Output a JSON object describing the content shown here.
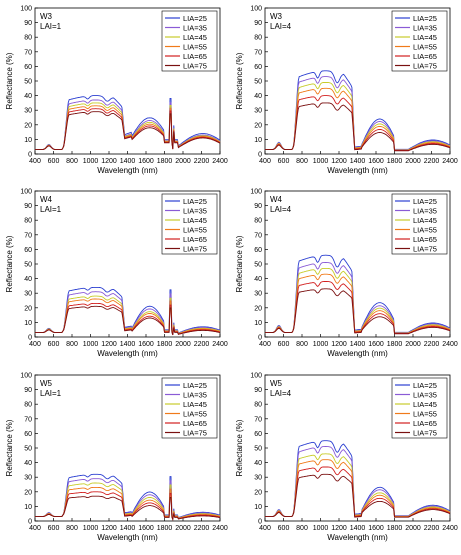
{
  "legend_labels": [
    "LIA=25",
    "LIA=35",
    "LIA=45",
    "LIA=55",
    "LIA=65",
    "LIA=75"
  ],
  "series_colors": [
    "#2b3fd1",
    "#8a5bd6",
    "#c8cc2a",
    "#f07a1a",
    "#d21f1f",
    "#7a1010"
  ],
  "chart_data": [
    {
      "type": "line",
      "title_lines": [
        "W3",
        "LAI=1"
      ],
      "xlabel": "Wavelength (nm)",
      "ylabel": "Reflectance (%)",
      "xlim": [
        400,
        2400
      ],
      "ylim": [
        0,
        100
      ],
      "xticks": [
        400,
        600,
        800,
        1000,
        1200,
        1400,
        1600,
        1800,
        2000,
        2200,
        2400
      ],
      "yticks": [
        0,
        10,
        20,
        30,
        40,
        50,
        60,
        70,
        80,
        90,
        100
      ],
      "legend_position": "top-right",
      "lai": 1,
      "nir_plateau": [
        40,
        37,
        35,
        33,
        31,
        29
      ],
      "swir_base": [
        14,
        13,
        12.5,
        12,
        11.5,
        11
      ]
    },
    {
      "type": "line",
      "title_lines": [
        "W3",
        "LAI=4"
      ],
      "xlabel": "Wavelength (nm)",
      "ylabel": "Reflectance (%)",
      "xlim": [
        400,
        2400
      ],
      "ylim": [
        0,
        100
      ],
      "xticks": [
        400,
        600,
        800,
        1000,
        1200,
        1400,
        1600,
        1800,
        2000,
        2200,
        2400
      ],
      "yticks": [
        0,
        10,
        20,
        30,
        40,
        50,
        60,
        70,
        80,
        90,
        100
      ],
      "legend_position": "top-right",
      "lai": 4,
      "nir_plateau": [
        57,
        53,
        49,
        45,
        40,
        35
      ],
      "swir_base": [
        8,
        7.5,
        7,
        6.5,
        6,
        5.5
      ]
    },
    {
      "type": "line",
      "title_lines": [
        "W4",
        "LAI=1"
      ],
      "xlabel": "Wavelength (nm)",
      "ylabel": "Reflectance (%)",
      "xlim": [
        400,
        2400
      ],
      "ylim": [
        0,
        100
      ],
      "xticks": [
        400,
        600,
        800,
        1000,
        1200,
        1400,
        1600,
        1800,
        2000,
        2200,
        2400
      ],
      "yticks": [
        0,
        10,
        20,
        30,
        40,
        50,
        60,
        70,
        80,
        90,
        100
      ],
      "legend_position": "top-right",
      "lai": 1,
      "nir_plateau": [
        34,
        31,
        28,
        26,
        23,
        21
      ],
      "swir_base": [
        7,
        6.5,
        6,
        5.5,
        5,
        4.5
      ]
    },
    {
      "type": "line",
      "title_lines": [
        "W4",
        "LAI=4"
      ],
      "xlabel": "Wavelength (nm)",
      "ylabel": "Reflectance (%)",
      "xlim": [
        400,
        2400
      ],
      "ylim": [
        0,
        100
      ],
      "xticks": [
        400,
        600,
        800,
        1000,
        1200,
        1400,
        1600,
        1800,
        2000,
        2200,
        2400
      ],
      "yticks": [
        0,
        10,
        20,
        30,
        40,
        50,
        60,
        70,
        80,
        90,
        100
      ],
      "legend_position": "top-right",
      "lai": 4,
      "nir_plateau": [
        56,
        51,
        47,
        43,
        38,
        33
      ],
      "swir_base": [
        8,
        7.5,
        7,
        6.5,
        6,
        5.5
      ]
    },
    {
      "type": "line",
      "title_lines": [
        "W5",
        "LAI=1"
      ],
      "xlabel": "Wavelength (nm)",
      "ylabel": "Reflectance (%)",
      "xlim": [
        400,
        2400
      ],
      "ylim": [
        0,
        100
      ],
      "xticks": [
        400,
        600,
        800,
        1000,
        1200,
        1400,
        1600,
        1800,
        2000,
        2200,
        2400
      ],
      "yticks": [
        0,
        10,
        20,
        30,
        40,
        50,
        60,
        70,
        80,
        90,
        100
      ],
      "legend_position": "top-right",
      "lai": 1,
      "nir_plateau": [
        32,
        29,
        26,
        23,
        20,
        17
      ],
      "swir_base": [
        6,
        5.5,
        5,
        4.5,
        4,
        3.5
      ]
    },
    {
      "type": "line",
      "title_lines": [
        "W5",
        "LAI=4"
      ],
      "xlabel": "Wavelength (nm)",
      "ylabel": "Reflectance (%)",
      "xlim": [
        400,
        2400
      ],
      "ylim": [
        0,
        100
      ],
      "xticks": [
        400,
        600,
        800,
        1000,
        1200,
        1400,
        1600,
        1800,
        2000,
        2200,
        2400
      ],
      "yticks": [
        0,
        10,
        20,
        30,
        40,
        50,
        60,
        70,
        80,
        90,
        100
      ],
      "legend_position": "top-right",
      "lai": 4,
      "nir_plateau": [
        55,
        51,
        46,
        42,
        37,
        32
      ],
      "swir_base": [
        9,
        8.5,
        8,
        7.5,
        7,
        6.5
      ]
    }
  ]
}
